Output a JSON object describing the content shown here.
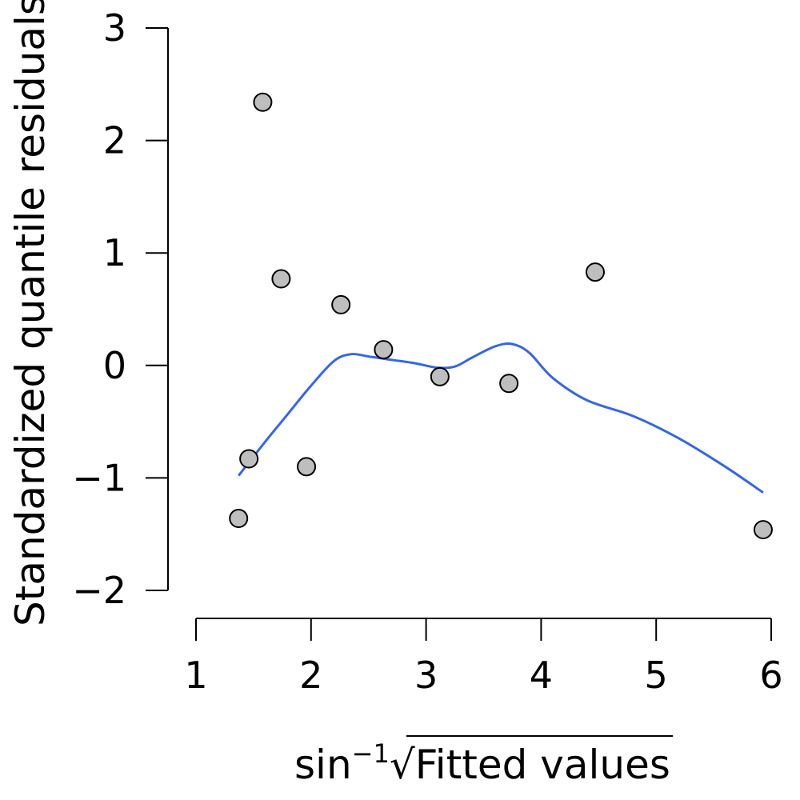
{
  "chart_data": {
    "type": "scatter",
    "title": "",
    "xlabel": {
      "prefix": "sin",
      "superscript": "−1",
      "radical": "√",
      "radicand": "Fitted values"
    },
    "ylabel": "Standardized quantile residuals",
    "xlim": [
      1,
      6
    ],
    "ylim": [
      -2,
      3
    ],
    "x_ticks": [
      1,
      2,
      3,
      4,
      5,
      6
    ],
    "x_tick_labels": [
      "1",
      "2",
      "3",
      "4",
      "5",
      "6"
    ],
    "y_ticks": [
      -2,
      -1,
      0,
      1,
      2,
      3
    ],
    "y_tick_labels": [
      "−2",
      "−1",
      "0",
      "1",
      "2",
      "3"
    ],
    "grid": false,
    "legend": "none",
    "points": [
      {
        "x": 1.37,
        "y": -1.36
      },
      {
        "x": 1.46,
        "y": -0.83
      },
      {
        "x": 1.58,
        "y": 2.34
      },
      {
        "x": 1.74,
        "y": 0.77
      },
      {
        "x": 1.96,
        "y": -0.9
      },
      {
        "x": 2.26,
        "y": 0.54
      },
      {
        "x": 2.63,
        "y": 0.14
      },
      {
        "x": 3.12,
        "y": -0.1
      },
      {
        "x": 3.72,
        "y": -0.16
      },
      {
        "x": 4.47,
        "y": 0.83
      },
      {
        "x": 5.93,
        "y": -1.46
      }
    ],
    "smooth_curve": {
      "x": [
        1.37,
        1.6,
        1.8,
        2.0,
        2.2,
        2.35,
        2.5,
        2.7,
        2.9,
        3.1,
        3.25,
        3.4,
        3.6,
        3.75,
        3.9,
        4.1,
        4.4,
        4.8,
        5.2,
        5.6,
        5.93
      ],
      "y": [
        -0.98,
        -0.68,
        -0.43,
        -0.18,
        0.04,
        0.1,
        0.08,
        0.05,
        0.02,
        -0.02,
        -0.01,
        0.07,
        0.17,
        0.19,
        0.11,
        -0.11,
        -0.31,
        -0.45,
        -0.65,
        -0.9,
        -1.13
      ]
    },
    "colors": {
      "points_fill": "#bebebe",
      "points_stroke": "#000000",
      "smooth_line": "#3366ee"
    }
  }
}
